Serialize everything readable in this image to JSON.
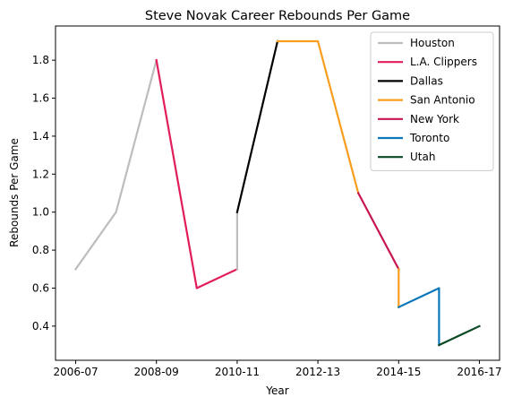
{
  "chart_data": {
    "type": "line",
    "title": "Steve Novak Career Rebounds Per Game",
    "xlabel": "Year",
    "ylabel": "Rebounds Per Game",
    "x_tick_labels": [
      "2006-07",
      "2008-09",
      "2010-11",
      "2012-13",
      "2014-15",
      "2016-17"
    ],
    "x_tick_positions": [
      0,
      2,
      4,
      6,
      8,
      10
    ],
    "y_ticks": [
      0.4,
      0.6,
      0.8,
      1.0,
      1.2,
      1.4,
      1.6,
      1.8
    ],
    "y_tick_labels": [
      "0.4",
      "0.6",
      "0.8",
      "1.0",
      "1.2",
      "1.4",
      "1.6",
      "1.8"
    ],
    "xlim": [
      -0.5,
      10.5
    ],
    "ylim": [
      0.22,
      1.98
    ],
    "grid": false,
    "legend_position": "top-right",
    "series": [
      {
        "name": "Houston",
        "color": "#bdbdbd",
        "x": [
          0,
          1,
          2
        ],
        "y": [
          0.7,
          1.0,
          1.8
        ]
      },
      {
        "name": "L.A. Clippers",
        "color": "#e31c5a",
        "x": [
          2,
          3,
          4
        ],
        "y": [
          1.8,
          0.6,
          0.7
        ]
      },
      {
        "name": "Houston",
        "color": "#bdbdbd",
        "x": [
          4,
          4
        ],
        "y": [
          0.7,
          1.0
        ],
        "legend": false
      },
      {
        "name": "Dallas",
        "color": "#000000",
        "x": [
          4,
          5
        ],
        "y": [
          1.0,
          1.9
        ]
      },
      {
        "name": "San Antonio",
        "color": "#f89d1e",
        "x": [
          5,
          6,
          7
        ],
        "y": [
          1.9,
          1.9,
          1.1
        ]
      },
      {
        "name": "New York",
        "color": "#c8154e",
        "x": [
          7,
          8
        ],
        "y": [
          1.1,
          0.7
        ]
      },
      {
        "name": "San Antonio",
        "color": "#f89d1e",
        "x": [
          8,
          8
        ],
        "y": [
          0.7,
          0.5
        ],
        "legend": false
      },
      {
        "name": "Toronto",
        "color": "#0b77b9",
        "x": [
          8,
          9,
          9
        ],
        "y": [
          0.5,
          0.6,
          0.3
        ]
      },
      {
        "name": "Utah",
        "color": "#0c4a25",
        "x": [
          9,
          10
        ],
        "y": [
          0.3,
          0.4
        ]
      }
    ]
  }
}
